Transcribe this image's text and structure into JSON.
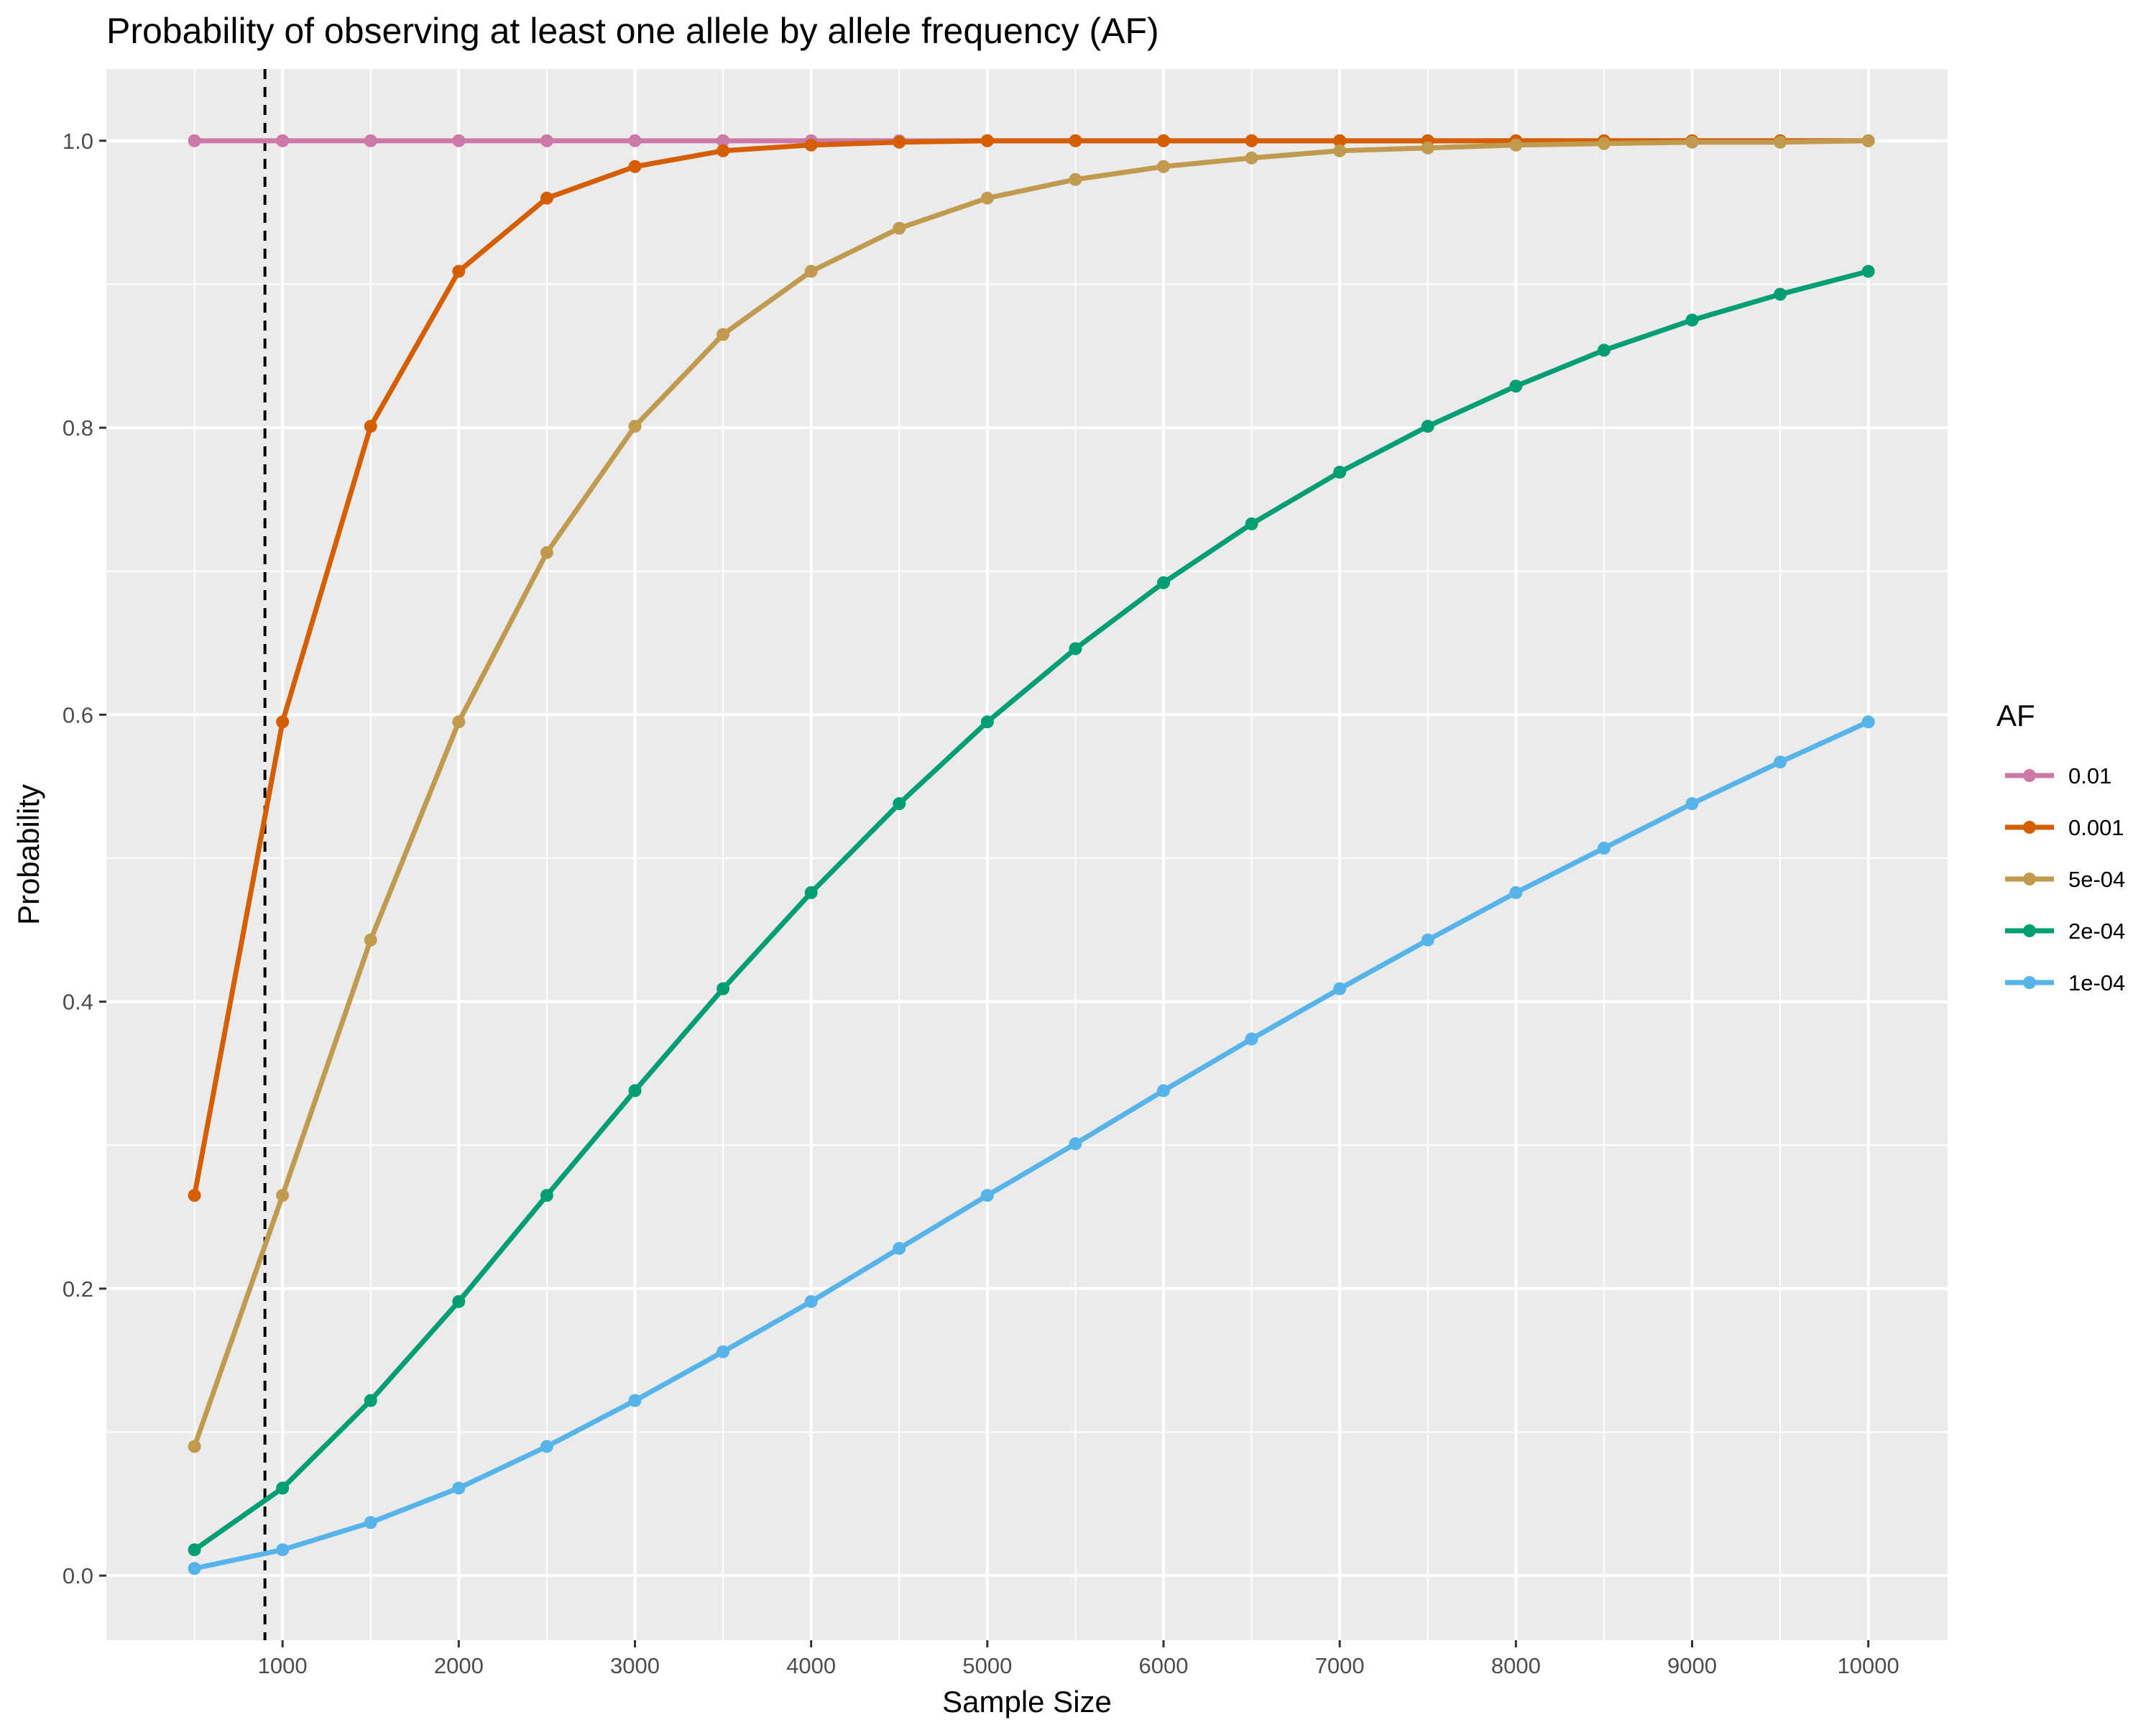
{
  "chart_data": {
    "type": "line",
    "title": "Probability of observing at least one allele by allele frequency (AF)",
    "xlabel": "Sample Size",
    "ylabel": "Probability",
    "xlim": [
      0,
      10450
    ],
    "ylim": [
      -0.045,
      1.05
    ],
    "x_ticks": [
      1000,
      2000,
      3000,
      4000,
      5000,
      6000,
      7000,
      8000,
      9000,
      10000
    ],
    "y_ticks": [
      0.0,
      0.2,
      0.4,
      0.6,
      0.8,
      1.0
    ],
    "x_tick_labels": [
      "1000",
      "2000",
      "3000",
      "4000",
      "5000",
      "6000",
      "7000",
      "8000",
      "9000",
      "10000"
    ],
    "y_tick_labels": [
      "0.0",
      "0.2",
      "0.4",
      "0.6",
      "0.8",
      "1.0"
    ],
    "grid": true,
    "legend_title": "AF",
    "legend_position": "right",
    "x": [
      500,
      1000,
      1500,
      2000,
      2500,
      3000,
      3500,
      4000,
      4500,
      5000,
      5500,
      6000,
      6500,
      7000,
      7500,
      8000,
      8500,
      9000,
      9500,
      10000
    ],
    "reference_line": {
      "x": 900,
      "style": "dashed",
      "color": "#000000"
    },
    "series": [
      {
        "name": "0.01",
        "color": "#CC79A7",
        "values": [
          1.0,
          1.0,
          1.0,
          1.0,
          1.0,
          1.0,
          1.0,
          1.0,
          1.0,
          1.0,
          1.0,
          1.0,
          1.0,
          1.0,
          1.0,
          1.0,
          1.0,
          1.0,
          1.0,
          1.0
        ]
      },
      {
        "name": "0.001",
        "color": "#D55E00",
        "values": [
          0.265,
          0.595,
          0.801,
          0.909,
          0.96,
          0.982,
          0.993,
          0.997,
          0.999,
          1.0,
          1.0,
          1.0,
          1.0,
          1.0,
          1.0,
          1.0,
          1.0,
          1.0,
          1.0,
          1.0
        ]
      },
      {
        "name": "5e-04",
        "color": "#C09B4F",
        "values": [
          0.09,
          0.265,
          0.443,
          0.595,
          0.713,
          0.801,
          0.865,
          0.909,
          0.939,
          0.96,
          0.973,
          0.982,
          0.988,
          0.993,
          0.995,
          0.997,
          0.998,
          0.999,
          0.999,
          1.0
        ]
      },
      {
        "name": "2e-04",
        "color": "#009E73",
        "values": [
          0.018,
          0.061,
          0.122,
          0.191,
          0.265,
          0.338,
          0.409,
          0.476,
          0.538,
          0.595,
          0.646,
          0.692,
          0.733,
          0.769,
          0.801,
          0.829,
          0.854,
          0.875,
          0.893,
          0.909
        ]
      },
      {
        "name": "1e-04",
        "color": "#56B4E9",
        "values": [
          0.005,
          0.018,
          0.037,
          0.061,
          0.09,
          0.122,
          0.156,
          0.191,
          0.228,
          0.265,
          0.301,
          0.338,
          0.374,
          0.409,
          0.443,
          0.476,
          0.507,
          0.538,
          0.567,
          0.595
        ]
      }
    ]
  }
}
